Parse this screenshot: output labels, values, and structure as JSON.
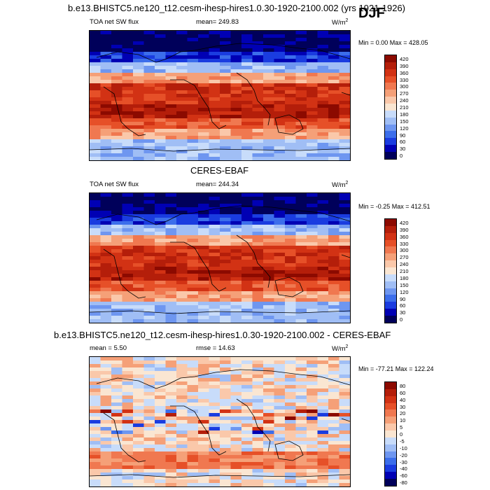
{
  "header": {
    "top_title": "b.e13.BHISTC5.ne120_t12.cesm-ihesp-hires1.0.30-1920-2100.002 (yrs 1921-1926)",
    "season": "DJF"
  },
  "panels": [
    {
      "left_label": "TOA net SW flux",
      "mean_text": "mean= 249.83",
      "units_base": "W/m",
      "units_exp": "2",
      "minmax_text": "Min =   0.00 Max = 428.05"
    },
    {
      "title": "CERES-EBAF",
      "left_label": "TOA net SW flux",
      "mean_text": "mean= 244.34",
      "units_base": "W/m",
      "units_exp": "2",
      "minmax_text": "Min =  -0.25 Max = 412.51"
    },
    {
      "title": "b.e13.BHISTC5.ne120_t12.cesm-ihesp-hires1.0.30-1920-2100.002 - CERES-EBAF",
      "left_label": "mean =   5.50",
      "mean_text": "rmse =  14.63",
      "units_base": "W/m",
      "units_exp": "2",
      "minmax_text": "Min = -77.21 Max = 122.24"
    }
  ],
  "chart_data": [
    {
      "type": "heatmap",
      "title": "TOA net SW flux",
      "units": "W/m^2",
      "mean": 249.83,
      "min": 0.0,
      "max": 428.05,
      "colorbar_levels": [
        0,
        30,
        60,
        90,
        120,
        150,
        180,
        210,
        240,
        270,
        300,
        330,
        360,
        390,
        420
      ],
      "colorbar_colors": [
        "#00005a",
        "#0000b4",
        "#1a3ce0",
        "#3c6eeb",
        "#6e96f0",
        "#a0bef5",
        "#c8dcfa",
        "#fae6d2",
        "#fac8aa",
        "#f5a078",
        "#f07850",
        "#e65028",
        "#d23214",
        "#b41e0a",
        "#8c0a00"
      ]
    },
    {
      "type": "heatmap",
      "title": "CERES-EBAF",
      "units": "W/m^2",
      "mean": 244.34,
      "min": -0.25,
      "max": 412.51,
      "colorbar_levels": [
        0,
        30,
        60,
        90,
        120,
        150,
        180,
        210,
        240,
        270,
        300,
        330,
        360,
        390,
        420
      ],
      "colorbar_colors": [
        "#00005a",
        "#0000b4",
        "#1a3ce0",
        "#3c6eeb",
        "#6e96f0",
        "#a0bef5",
        "#c8dcfa",
        "#fae6d2",
        "#fac8aa",
        "#f5a078",
        "#f07850",
        "#e65028",
        "#d23214",
        "#b41e0a",
        "#8c0a00"
      ]
    },
    {
      "type": "heatmap",
      "title": "b.e13.BHISTC5.ne120_t12.cesm-ihesp-hires1.0.30-1920-2100.002 - CERES-EBAF",
      "units": "W/m^2",
      "mean": 5.5,
      "rmse": 14.63,
      "min": -77.21,
      "max": 122.24,
      "colorbar_levels": [
        -80,
        -60,
        -40,
        -30,
        -20,
        -10,
        -5,
        0,
        5,
        10,
        20,
        30,
        40,
        60,
        80
      ],
      "colorbar_colors": [
        "#00005a",
        "#0000b4",
        "#1a3ce0",
        "#3c6eeb",
        "#6e96f0",
        "#a0bef5",
        "#c8dcfa",
        "#fae6d2",
        "#fac8aa",
        "#f5a078",
        "#f07850",
        "#e65028",
        "#d23214",
        "#b41e0a",
        "#8c0a00"
      ]
    }
  ]
}
